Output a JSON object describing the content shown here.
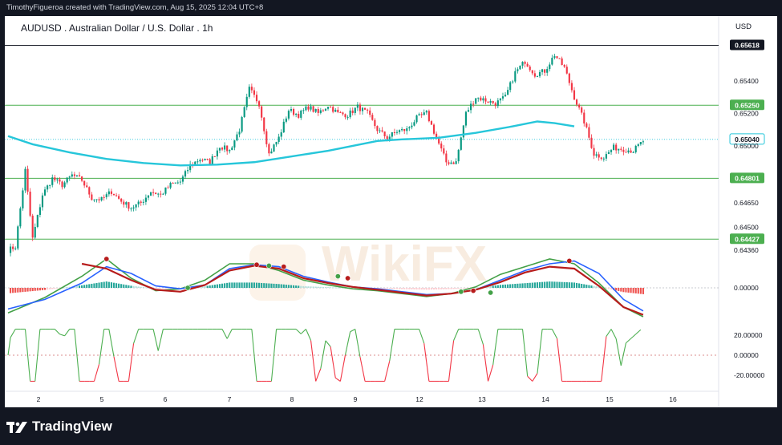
{
  "header": {
    "attribution": "TimothyFigueroa created with TradingView.com, Aug 15, 2025 12:04 UTC+8"
  },
  "chart_header": {
    "symbol": "AUDUSD . Australian Dollar / U.S. Dollar . 1h",
    "currency": "USD"
  },
  "footer": {
    "brand": "TradingView"
  },
  "watermark": {
    "text": "WikiFX"
  },
  "colors": {
    "up": "#089981",
    "down": "#f23645",
    "ma": "#26c6da",
    "black_line": "#131722",
    "green_line": "#4caf50",
    "macd_signal": "#b71c1c",
    "macd_line_green": "#43a047",
    "macd_line_blue": "#2962ff",
    "osc_green": "#4caf50",
    "osc_red": "#f23645"
  },
  "chart_data": [
    {
      "type": "candlestick",
      "timeframe": "1h",
      "x_tick_labels": [
        "2",
        "5",
        "6",
        "7",
        "8",
        "9",
        "12",
        "13",
        "14",
        "15",
        "16"
      ],
      "y_tick_labels": [
        "0.65400",
        "0.65200",
        "0.65000",
        "0.64650",
        "0.64500",
        "0.64360"
      ],
      "ylim": [
        0.6432,
        0.6565
      ],
      "horizontal_levels": [
        {
          "value": 0.65618,
          "label": "0.65618",
          "color": "black"
        },
        {
          "value": 0.6525,
          "label": "0.65250",
          "color": "green"
        },
        {
          "value": 0.64801,
          "label": "0.64801",
          "color": "green"
        },
        {
          "value": 0.64427,
          "label": "0.64427",
          "color": "green"
        }
      ],
      "last_price": {
        "value": 0.6504,
        "label": "0.65040"
      },
      "moving_average": {
        "x": [
          0,
          10,
          25,
          40,
          55,
          70,
          85,
          100,
          115,
          130,
          140,
          150,
          160,
          175,
          190,
          205,
          215,
          222,
          230
        ],
        "y": [
          0.6506,
          0.6501,
          0.6496,
          0.6492,
          0.64895,
          0.6488,
          0.64885,
          0.649,
          0.64935,
          0.6497,
          0.65,
          0.6503,
          0.6504,
          0.6505,
          0.6508,
          0.6512,
          0.6515,
          0.6514,
          0.6512
        ]
      },
      "candles_anchor": [
        [
          0,
          0.6436
        ],
        [
          3,
          0.6438
        ],
        [
          7,
          0.6485
        ],
        [
          10,
          0.6443
        ],
        [
          14,
          0.647
        ],
        [
          18,
          0.648
        ],
        [
          22,
          0.6476
        ],
        [
          26,
          0.6482
        ],
        [
          30,
          0.6479
        ],
        [
          34,
          0.6468
        ],
        [
          38,
          0.6467
        ],
        [
          42,
          0.6472
        ],
        [
          46,
          0.6466
        ],
        [
          50,
          0.6462
        ],
        [
          54,
          0.6465
        ],
        [
          58,
          0.6472
        ],
        [
          62,
          0.647
        ],
        [
          66,
          0.6476
        ],
        [
          70,
          0.6478
        ],
        [
          74,
          0.6488
        ],
        [
          78,
          0.6492
        ],
        [
          82,
          0.649
        ],
        [
          86,
          0.65
        ],
        [
          90,
          0.6497
        ],
        [
          94,
          0.651
        ],
        [
          98,
          0.6535
        ],
        [
          102,
          0.6526
        ],
        [
          106,
          0.6495
        ],
        [
          110,
          0.6505
        ],
        [
          114,
          0.6522
        ],
        [
          118,
          0.6519
        ],
        [
          122,
          0.6524
        ],
        [
          126,
          0.652
        ],
        [
          130,
          0.6525
        ],
        [
          134,
          0.652
        ],
        [
          138,
          0.6519
        ],
        [
          142,
          0.6524
        ],
        [
          146,
          0.652
        ],
        [
          150,
          0.651
        ],
        [
          154,
          0.6505
        ],
        [
          158,
          0.6509
        ],
        [
          162,
          0.651
        ],
        [
          166,
          0.6517
        ],
        [
          170,
          0.652
        ],
        [
          174,
          0.6505
        ],
        [
          178,
          0.649
        ],
        [
          182,
          0.649
        ],
        [
          186,
          0.652
        ],
        [
          190,
          0.653
        ],
        [
          194,
          0.6528
        ],
        [
          198,
          0.6526
        ],
        [
          202,
          0.653
        ],
        [
          206,
          0.6545
        ],
        [
          210,
          0.6552
        ],
        [
          214,
          0.6544
        ],
        [
          218,
          0.6546
        ],
        [
          222,
          0.6556
        ],
        [
          226,
          0.6548
        ],
        [
          230,
          0.653
        ],
        [
          234,
          0.6515
        ],
        [
          238,
          0.6495
        ],
        [
          242,
          0.6493
        ],
        [
          246,
          0.6499
        ],
        [
          250,
          0.6498
        ],
        [
          254,
          0.6497
        ],
        [
          258,
          0.6503
        ]
      ],
      "note_candle_units": "x is candle index, y is price"
    },
    {
      "type": "line",
      "role": "macd_indicator",
      "y_tick_labels": [
        "0.00000"
      ],
      "series": [
        {
          "color_key": "macd_line_green",
          "x": [
            0,
            15,
            30,
            40,
            50,
            60,
            70,
            80,
            90,
            100,
            110,
            120,
            130,
            140,
            150,
            160,
            170,
            180,
            190,
            200,
            210,
            220,
            230,
            240,
            250,
            258
          ],
          "y": [
            -26,
            -10,
            12,
            30,
            10,
            -3,
            -1,
            8,
            25,
            25,
            18,
            8,
            3,
            -1,
            -3,
            -6,
            -9,
            -6,
            1,
            14,
            22,
            30,
            25,
            5,
            -20,
            -30
          ]
        },
        {
          "color_key": "macd_line_blue",
          "x": [
            0,
            15,
            30,
            40,
            50,
            60,
            70,
            80,
            90,
            100,
            110,
            120,
            130,
            140,
            150,
            160,
            170,
            180,
            190,
            200,
            210,
            220,
            230,
            240,
            250,
            258
          ],
          "y": [
            -22,
            -12,
            5,
            22,
            15,
            2,
            -1,
            3,
            20,
            24,
            22,
            12,
            6,
            1,
            -1,
            -4,
            -7,
            -6,
            -2,
            8,
            18,
            25,
            28,
            15,
            -12,
            -24
          ]
        },
        {
          "color_key": "macd_signal",
          "x": [
            30,
            40,
            50,
            60,
            70,
            80,
            90,
            100,
            110,
            120,
            130,
            140,
            150,
            160,
            170,
            180,
            190,
            200,
            210,
            220,
            230,
            240,
            250,
            258
          ],
          "y": [
            25,
            20,
            8,
            -2,
            -4,
            3,
            18,
            23,
            20,
            10,
            5,
            1,
            -2,
            -5,
            -8,
            -6,
            -2,
            6,
            16,
            22,
            20,
            2,
            -20,
            -28
          ]
        }
      ]
    },
    {
      "type": "line",
      "role": "oscillator",
      "y_tick_labels": [
        "20.00000",
        "0.00000",
        "-20.00000"
      ],
      "ylim": [
        -28,
        28
      ]
    }
  ]
}
